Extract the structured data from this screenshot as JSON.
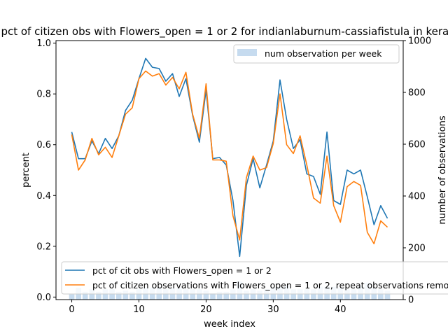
{
  "chart_data": {
    "type": "line",
    "title": "pct of citizen obs with Flowers_open = 1 or 2 for indianlaburnum-cassiafistula in kerala",
    "xlabel": "week index",
    "ylabel": "percent",
    "y2label": "number of observations",
    "xlim": [
      -2.35,
      49.35
    ],
    "ylim": [
      -0.01,
      1.01
    ],
    "y2lim": [
      0,
      1000
    ],
    "xticks": [
      "0",
      "10",
      "20",
      "30",
      "40"
    ],
    "yticks": [
      "0.0",
      "0.2",
      "0.4",
      "0.6",
      "0.8",
      "1.0"
    ],
    "y2ticks": [
      "0",
      "200",
      "400",
      "600",
      "800",
      "1000"
    ],
    "grid": false,
    "x": [
      0,
      1,
      2,
      3,
      4,
      5,
      6,
      7,
      8,
      9,
      10,
      11,
      12,
      13,
      14,
      15,
      16,
      17,
      18,
      19,
      20,
      21,
      22,
      23,
      24,
      25,
      26,
      27,
      28,
      29,
      30,
      31,
      32,
      33,
      34,
      35,
      36,
      37,
      38,
      39,
      40,
      41,
      42,
      43,
      44,
      45,
      46,
      47
    ],
    "series": [
      {
        "name": "pct of cit obs with Flowers_open = 1 or 2",
        "color": "#1f77b4",
        "values": [
          0.65,
          0.545,
          0.545,
          0.615,
          0.565,
          0.625,
          0.585,
          0.635,
          0.735,
          0.775,
          0.86,
          0.94,
          0.905,
          0.9,
          0.85,
          0.88,
          0.79,
          0.86,
          0.715,
          0.61,
          0.815,
          0.545,
          0.55,
          0.52,
          0.38,
          0.16,
          0.44,
          0.545,
          0.43,
          0.52,
          0.615,
          0.855,
          0.7,
          0.585,
          0.62,
          0.485,
          0.475,
          0.405,
          0.65,
          0.38,
          0.365,
          0.5,
          0.485,
          0.5,
          0.395,
          0.285,
          0.36,
          0.31
        ]
      },
      {
        "name": "pct of citizen observations with Flowers_open = 1 or 2, repeat observations removed",
        "color": "#ff7f0e",
        "values": [
          0.64,
          0.5,
          0.54,
          0.625,
          0.56,
          0.59,
          0.55,
          0.635,
          0.72,
          0.745,
          0.86,
          0.89,
          0.87,
          0.88,
          0.835,
          0.865,
          0.82,
          0.885,
          0.72,
          0.625,
          0.84,
          0.54,
          0.54,
          0.535,
          0.32,
          0.225,
          0.47,
          0.555,
          0.5,
          0.51,
          0.605,
          0.8,
          0.6,
          0.565,
          0.635,
          0.52,
          0.39,
          0.37,
          0.555,
          0.36,
          0.295,
          0.435,
          0.455,
          0.44,
          0.255,
          0.21,
          0.3,
          0.275
        ]
      }
    ],
    "bars": {
      "name": "num observation per week",
      "color": "#c6dbef",
      "axis": "y2",
      "values": [
        20,
        45,
        30,
        40,
        30,
        40,
        40,
        30,
        35,
        30,
        40,
        45,
        45,
        45,
        40,
        45,
        45,
        40,
        40,
        40,
        35,
        25,
        30,
        30,
        40,
        70,
        35,
        40,
        35,
        40,
        45,
        50,
        55,
        40,
        40,
        40,
        40,
        50,
        50,
        50,
        45,
        40,
        40,
        55,
        65,
        45,
        40,
        35
      ]
    },
    "legends": {
      "bars": "top-right",
      "lines": "bottom"
    }
  }
}
